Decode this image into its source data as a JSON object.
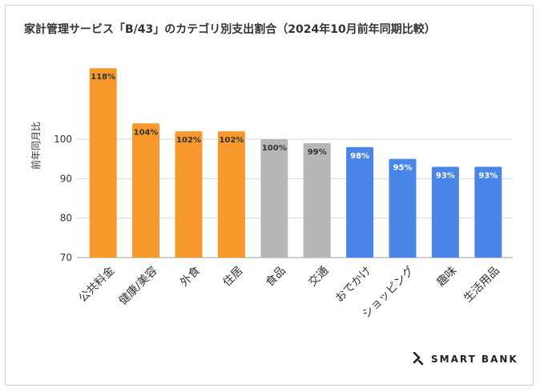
{
  "chart_data": {
    "type": "bar",
    "title": "家計管理サービス「B/43」のカテゴリ別支出割合（2024年10月前年同期比較）",
    "ylabel": "前年同月比",
    "xlabel": "",
    "ylim": [
      70,
      118
    ],
    "yticks": [
      70,
      80,
      90,
      100
    ],
    "categories": [
      "公共料金",
      "健康/美容",
      "外食",
      "住居",
      "食品",
      "交通",
      "おでかけ",
      "ショッピング",
      "趣味",
      "生活用品"
    ],
    "values": [
      118,
      104,
      102,
      102,
      100,
      99,
      98,
      95,
      93,
      93
    ],
    "labels": [
      "118%",
      "104%",
      "102%",
      "102%",
      "100%",
      "99%",
      "98%",
      "95%",
      "93%",
      "93%"
    ],
    "colors": [
      "#F7992C",
      "#F7992C",
      "#F7992C",
      "#F7992C",
      "#B7B7B7",
      "#B7B7B7",
      "#4A86E8",
      "#4A86E8",
      "#4A86E8",
      "#4A86E8"
    ],
    "label_colors": [
      "#333333",
      "#333333",
      "#333333",
      "#333333",
      "#333333",
      "#333333",
      "#ffffff",
      "#ffffff",
      "#ffffff",
      "#ffffff"
    ],
    "grid": true
  },
  "brand": {
    "name": "SMART BANK"
  }
}
